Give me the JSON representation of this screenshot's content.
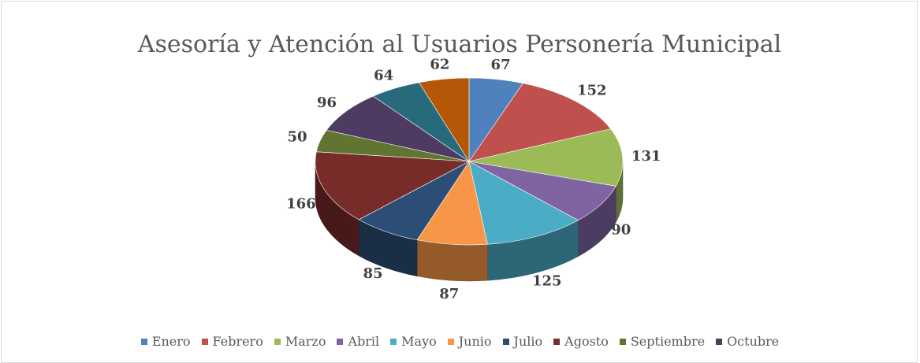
{
  "chart_data": {
    "type": "pie",
    "title": "Asesoría y Atención al Usuarios Personería Municipal",
    "categories": [
      "Enero",
      "Febrero",
      "Marzo",
      "Abril",
      "Mayo",
      "Junio",
      "Julio",
      "Agosto",
      "Septiembre",
      "Octubre",
      null,
      null
    ],
    "values": [
      67,
      152,
      131,
      90,
      125,
      87,
      85,
      166,
      50,
      96,
      64,
      62
    ],
    "colors": [
      "#4f81bd",
      "#c0504d",
      "#9bbb59",
      "#8064a2",
      "#4bacc6",
      "#f79646",
      "#2c4d75",
      "#772c2a",
      "#5f7530",
      "#4d3b62",
      "#276a7c",
      "#b65708"
    ],
    "legend": "bottom"
  }
}
